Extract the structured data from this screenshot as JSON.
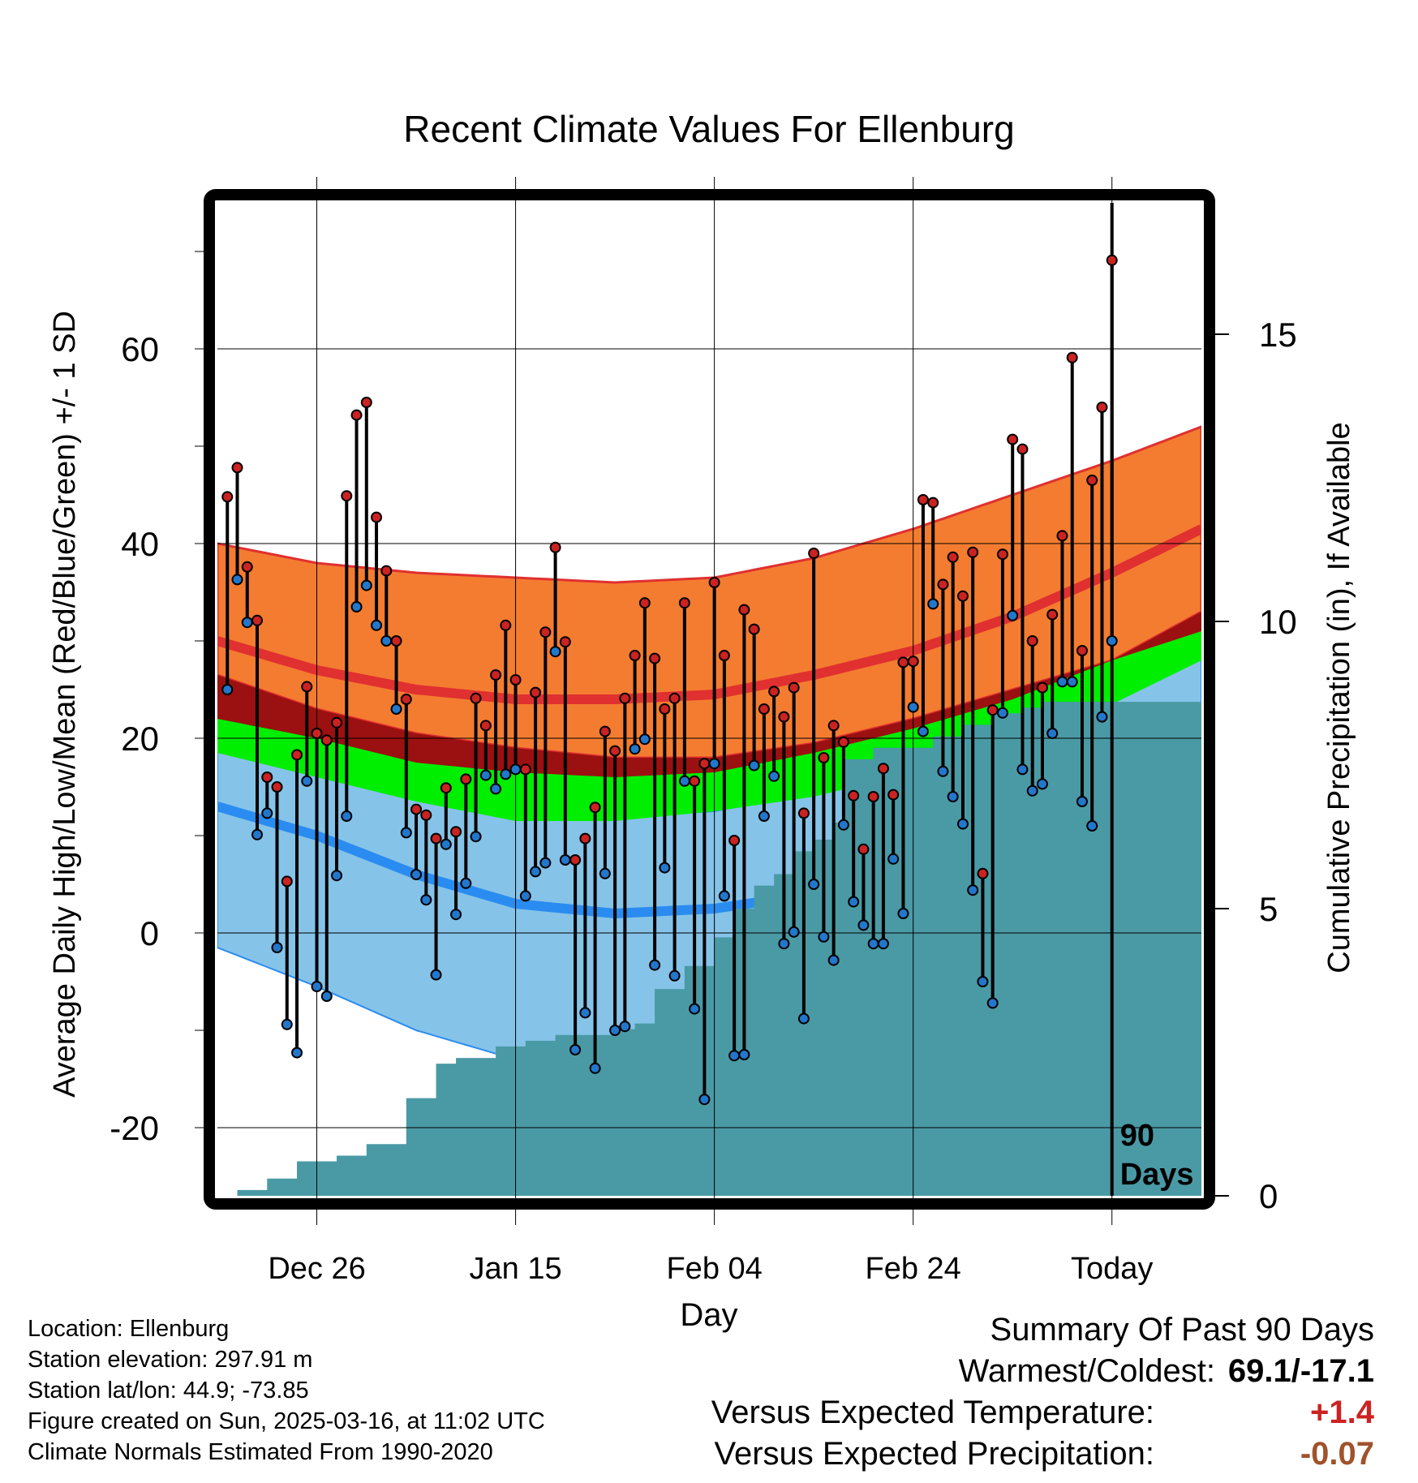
{
  "chart_data": {
    "type": "line",
    "title": "Recent Climate Values For Ellenburg",
    "xlabel": "Day",
    "ylabel_left": "Average Daily High/Low/Mean (Red/Blue/Green) +/- 1 SD",
    "ylabel_right": "Cumulative Precipitation (in), If Available",
    "ylim": [
      -27,
      75
    ],
    "y2lim": [
      0,
      75
    ],
    "x_range_days": [
      -90,
      9
    ],
    "x_ticks": [
      {
        "day": -80,
        "label": "Dec 26"
      },
      {
        "day": -60,
        "label": "Jan 15"
      },
      {
        "day": -40,
        "label": "Feb 04"
      },
      {
        "day": -20,
        "label": "Feb 24"
      },
      {
        "day": 0,
        "label": "Today"
      }
    ],
    "y_ticks": [
      -20,
      0,
      20,
      40,
      60
    ],
    "y2_ticks": [
      0,
      5,
      10,
      15
    ],
    "today_marker": "90\nDays",
    "grid": true,
    "normals": {
      "days": [
        -90,
        -80,
        -70,
        -60,
        -50,
        -40,
        -30,
        -20,
        -10,
        0,
        9
      ],
      "high_plus_sd": [
        40,
        38,
        37,
        36.5,
        36,
        36.5,
        38.5,
        41.5,
        45,
        48.5,
        52
      ],
      "high_mean": [
        30,
        27,
        25,
        24,
        24,
        24.5,
        26.5,
        29,
        32.5,
        37,
        41.5
      ],
      "high_minus_sd": [
        26.5,
        23,
        20.5,
        19,
        18,
        18,
        19.5,
        22,
        25,
        28,
        33
      ],
      "avg_plus_sd": [
        22,
        20,
        17.5,
        16.5,
        16,
        16.5,
        18.5,
        21,
        24,
        28,
        31
      ],
      "avg_minus_sd": [
        18.5,
        16,
        13.5,
        11.5,
        11.5,
        12.5,
        14,
        16.5,
        19.5,
        23.5,
        28
      ],
      "low_plus_sd": [
        19,
        16.5,
        14,
        12.5,
        12,
        12.5,
        14.5,
        17,
        20.5,
        25.5,
        30
      ],
      "low_mean": [
        13,
        10,
        6,
        3,
        2,
        2.5,
        4,
        6.5,
        10,
        15,
        20
      ],
      "low_minus_sd": [
        -1.5,
        -5.5,
        -10,
        -13,
        -13.5,
        -12.5,
        -10,
        -6.5,
        -1,
        3,
        9
      ]
    },
    "series": [
      {
        "name": "Daily High",
        "values": [
          44.8,
          47.8,
          37.6,
          32.1,
          16,
          15,
          5.3,
          18.3,
          25.3,
          20.5,
          19.8,
          21.6,
          44.9,
          53.2,
          54.5,
          42.7,
          37.2,
          30,
          24,
          12.7,
          12.1,
          9.7,
          14.9,
          10.4,
          15.8,
          24.1,
          21.3,
          26.5,
          31.6,
          26,
          16.8,
          24.7,
          30.9,
          39.6,
          29.9,
          7.5,
          9.7,
          12.9,
          20.7,
          18.7,
          24.1,
          28.5,
          33.9,
          28.2,
          23,
          24.1,
          33.9,
          15.6,
          17.4,
          36,
          28.5,
          9.5,
          33.2,
          31.2,
          23,
          24.8,
          22.2,
          25.2,
          12.3,
          39,
          18,
          21.3,
          19.6,
          14.1,
          8.6,
          14,
          16.9,
          14.2,
          27.8,
          27.9,
          44.5,
          44.2,
          35.8,
          38.6,
          34.6,
          39.1,
          6.1,
          22.9,
          38.9,
          50.7,
          49.7,
          30,
          25.2,
          32.7,
          40.8,
          59.1,
          29,
          46.5,
          54,
          69.1
        ],
        "color": "#cc2222"
      },
      {
        "name": "Daily Low",
        "values": [
          25,
          36.3,
          31.9,
          10.1,
          12.3,
          -1.5,
          -9.4,
          -12.3,
          15.6,
          -5.5,
          -6.5,
          5.9,
          12,
          33.5,
          35.7,
          31.6,
          30,
          23,
          10.3,
          6,
          3.4,
          -4.3,
          9.1,
          1.9,
          5.1,
          9.9,
          16.2,
          14.8,
          16.3,
          16.8,
          3.8,
          6.3,
          7.2,
          28.9,
          7.5,
          -12,
          -8.2,
          -13.9,
          6.1,
          -10,
          -9.6,
          18.9,
          19.9,
          -3.3,
          6.7,
          -4.4,
          15.6,
          -7.8,
          -17.1,
          17.4,
          3.8,
          -12.6,
          -12.5,
          17.2,
          12,
          16.1,
          -1.1,
          0.1,
          -8.8,
          5,
          -0.4,
          -2.8,
          11.1,
          3.2,
          0.8,
          -1.1,
          -1.1,
          7.6,
          2,
          23.2,
          20.7,
          33.8,
          16.6,
          14,
          11.2,
          4.4,
          -5,
          -7.2,
          22.6,
          32.6,
          16.8,
          14.6,
          15.3,
          20.5,
          25.8,
          25.8,
          13.5,
          11,
          22.2,
          30
        ],
        "color": "#2277cc"
      },
      {
        "name": "Cumulative Precipitation",
        "days": [
          -88,
          -85,
          -82,
          -78,
          -75,
          -71,
          -68,
          -66,
          -62,
          -59,
          -56,
          -53,
          -50,
          -48,
          -46,
          -43,
          -40,
          -38,
          -36,
          -34,
          -32,
          -30,
          -28,
          -27,
          -24,
          -20,
          -18,
          -15,
          -12,
          -9,
          -7,
          9
        ],
        "values": [
          0.1,
          0.3,
          0.6,
          0.7,
          0.9,
          1.7,
          2.3,
          2.4,
          2.6,
          2.7,
          2.8,
          2.8,
          2.9,
          3.0,
          3.6,
          4.0,
          4.5,
          5.0,
          5.4,
          5.6,
          6.0,
          6.2,
          6.5,
          7.6,
          7.8,
          7.8,
          8.0,
          8.2,
          8.4,
          8.5,
          8.6,
          8.6
        ],
        "color": "#4a9aa5"
      }
    ]
  },
  "footer": {
    "location": "Location: Ellenburg",
    "elevation": "Station elevation: 297.91 m",
    "latlon": "Station lat/lon: 44.9; -73.85",
    "created": "Figure created on Sun, 2025-03-16, at 11:02 UTC",
    "normals": "Climate Normals Estimated From 1990-2020"
  },
  "summary": {
    "title": "Summary Of Past 90 Days",
    "warmest_coldest_label": "Warmest/Coldest:",
    "warmest_coldest_value": "69.1/-17.1",
    "temp_label": "Versus Expected Temperature:",
    "temp_value": "+1.4",
    "temp_color": "#cc2222",
    "precip_label": "Versus Expected Precipitation:",
    "precip_value": "-0.07",
    "precip_color": "#a0522d"
  },
  "colors": {
    "high_band": "#f47c30",
    "high_line": "#e03030",
    "overlap_band": "#9b1010",
    "avg_band": "#00ee00",
    "low_band": "#86c3e8",
    "low_line": "#2a8cf0",
    "precip": "#4a9aa5"
  }
}
